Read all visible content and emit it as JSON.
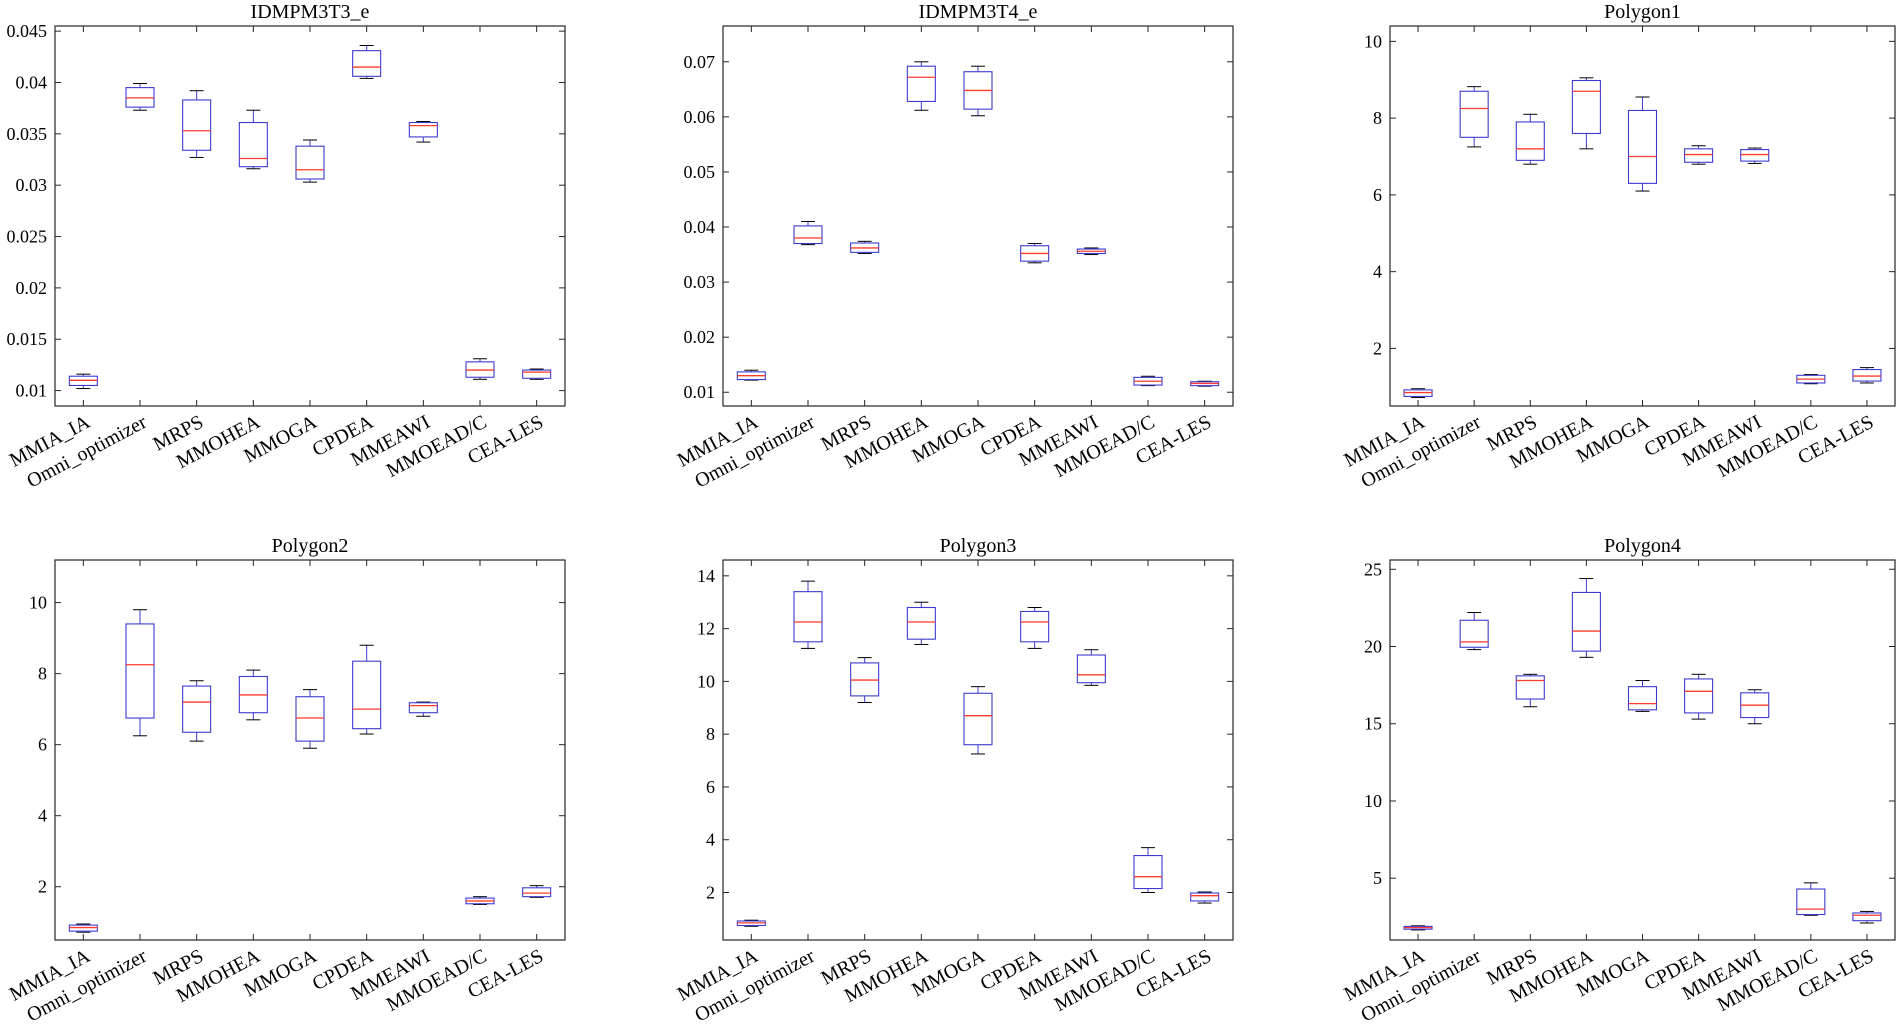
{
  "chart_data": [
    {
      "type": "box",
      "title": "IDMPM3T3_e",
      "categories": [
        "MMIA_IA",
        "Omni_optimizer",
        "MRPS",
        "MMOHEA",
        "MMOGA",
        "CPDEA",
        "MMEAWI",
        "MMOEAD/C",
        "CEA-LES"
      ],
      "ylim": [
        0.0085,
        0.0455
      ],
      "yticks": [
        0.01,
        0.015,
        0.02,
        0.025,
        0.03,
        0.035,
        0.04,
        0.045
      ],
      "ytick_labels": [
        "0.01",
        "0.015",
        "0.02",
        "0.025",
        "0.03",
        "0.035",
        "0.04",
        "0.045"
      ],
      "boxes": [
        {
          "min": 0.0102,
          "q1": 0.0105,
          "median": 0.011,
          "q3": 0.0114,
          "max": 0.0116
        },
        {
          "min": 0.0373,
          "q1": 0.0376,
          "median": 0.0385,
          "q3": 0.0395,
          "max": 0.0399
        },
        {
          "min": 0.0327,
          "q1": 0.0334,
          "median": 0.0353,
          "q3": 0.0383,
          "max": 0.0392
        },
        {
          "min": 0.0316,
          "q1": 0.0318,
          "median": 0.0326,
          "q3": 0.0361,
          "max": 0.0373
        },
        {
          "min": 0.0303,
          "q1": 0.0306,
          "median": 0.0315,
          "q3": 0.0338,
          "max": 0.0344
        },
        {
          "min": 0.0404,
          "q1": 0.0406,
          "median": 0.0415,
          "q3": 0.0431,
          "max": 0.0436
        },
        {
          "min": 0.0342,
          "q1": 0.0347,
          "median": 0.0358,
          "q3": 0.0361,
          "max": 0.0362
        },
        {
          "min": 0.0111,
          "q1": 0.0113,
          "median": 0.012,
          "q3": 0.0128,
          "max": 0.0131
        },
        {
          "min": 0.0111,
          "q1": 0.0112,
          "median": 0.0118,
          "q3": 0.012,
          "max": 0.0121
        }
      ]
    },
    {
      "type": "box",
      "title": "IDMPM3T4_e",
      "categories": [
        "MMIA_IA",
        "Omni_optimizer",
        "MRPS",
        "MMOHEA",
        "MMOGA",
        "CPDEA",
        "MMEAWI",
        "MMOEAD/C",
        "CEA-LES"
      ],
      "ylim": [
        0.0075,
        0.0765
      ],
      "yticks": [
        0.01,
        0.02,
        0.03,
        0.04,
        0.05,
        0.06,
        0.07
      ],
      "ytick_labels": [
        "0.01",
        "0.02",
        "0.03",
        "0.04",
        "0.05",
        "0.06",
        "0.07"
      ],
      "boxes": [
        {
          "min": 0.0122,
          "q1": 0.0123,
          "median": 0.013,
          "q3": 0.0137,
          "max": 0.014
        },
        {
          "min": 0.0368,
          "q1": 0.037,
          "median": 0.038,
          "q3": 0.0402,
          "max": 0.041
        },
        {
          "min": 0.0352,
          "q1": 0.0354,
          "median": 0.0362,
          "q3": 0.0371,
          "max": 0.0374
        },
        {
          "min": 0.0612,
          "q1": 0.0628,
          "median": 0.0672,
          "q3": 0.0692,
          "max": 0.07
        },
        {
          "min": 0.0602,
          "q1": 0.0614,
          "median": 0.0648,
          "q3": 0.0682,
          "max": 0.0692
        },
        {
          "min": 0.0335,
          "q1": 0.0338,
          "median": 0.0352,
          "q3": 0.0366,
          "max": 0.037
        },
        {
          "min": 0.035,
          "q1": 0.0352,
          "median": 0.0356,
          "q3": 0.036,
          "max": 0.0362
        },
        {
          "min": 0.0112,
          "q1": 0.0113,
          "median": 0.012,
          "q3": 0.0127,
          "max": 0.0129
        },
        {
          "min": 0.0111,
          "q1": 0.0112,
          "median": 0.0116,
          "q3": 0.0119,
          "max": 0.012
        }
      ]
    },
    {
      "type": "box",
      "title": "Polygon1",
      "categories": [
        "MMIA_IA",
        "Omni_optimizer",
        "MRPS",
        "MMOHEA",
        "MMOGA",
        "CPDEA",
        "MMEAWI",
        "MMOEAD/C",
        "CEA-LES"
      ],
      "ylim": [
        0.5,
        10.4
      ],
      "yticks": [
        2,
        4,
        6,
        8,
        10
      ],
      "ytick_labels": [
        "2",
        "4",
        "6",
        "8",
        "10"
      ],
      "boxes": [
        {
          "min": 0.72,
          "q1": 0.75,
          "median": 0.85,
          "q3": 0.92,
          "max": 0.95
        },
        {
          "min": 7.25,
          "q1": 7.5,
          "median": 8.25,
          "q3": 8.7,
          "max": 8.82
        },
        {
          "min": 6.8,
          "q1": 6.9,
          "median": 7.2,
          "q3": 7.9,
          "max": 8.1
        },
        {
          "min": 7.2,
          "q1": 7.6,
          "median": 8.7,
          "q3": 8.98,
          "max": 9.05
        },
        {
          "min": 6.1,
          "q1": 6.3,
          "median": 7.0,
          "q3": 8.2,
          "max": 8.55
        },
        {
          "min": 6.8,
          "q1": 6.85,
          "median": 7.05,
          "q3": 7.2,
          "max": 7.28
        },
        {
          "min": 6.82,
          "q1": 6.88,
          "median": 7.05,
          "q3": 7.18,
          "max": 7.22
        },
        {
          "min": 1.08,
          "q1": 1.1,
          "median": 1.2,
          "q3": 1.3,
          "max": 1.32
        },
        {
          "min": 1.1,
          "q1": 1.15,
          "median": 1.28,
          "q3": 1.45,
          "max": 1.5
        }
      ]
    },
    {
      "type": "box",
      "title": "Polygon2",
      "categories": [
        "MMIA_IA",
        "Omni_optimizer",
        "MRPS",
        "MMOHEA",
        "MMOGA",
        "CPDEA",
        "MMEAWI",
        "MMOEAD/C",
        "CEA-LES"
      ],
      "ylim": [
        0.5,
        11.2
      ],
      "yticks": [
        2,
        4,
        6,
        8,
        10
      ],
      "ytick_labels": [
        "2",
        "4",
        "6",
        "8",
        "10"
      ],
      "boxes": [
        {
          "min": 0.72,
          "q1": 0.75,
          "median": 0.85,
          "q3": 0.92,
          "max": 0.95
        },
        {
          "min": 6.25,
          "q1": 6.75,
          "median": 8.25,
          "q3": 9.4,
          "max": 9.8
        },
        {
          "min": 6.1,
          "q1": 6.35,
          "median": 7.2,
          "q3": 7.65,
          "max": 7.8
        },
        {
          "min": 6.7,
          "q1": 6.9,
          "median": 7.4,
          "q3": 7.92,
          "max": 8.1
        },
        {
          "min": 5.9,
          "q1": 6.1,
          "median": 6.75,
          "q3": 7.35,
          "max": 7.55
        },
        {
          "min": 6.3,
          "q1": 6.45,
          "median": 7.0,
          "q3": 8.35,
          "max": 8.8
        },
        {
          "min": 6.8,
          "q1": 6.9,
          "median": 7.1,
          "q3": 7.18,
          "max": 7.2
        },
        {
          "min": 1.5,
          "q1": 1.52,
          "median": 1.6,
          "q3": 1.68,
          "max": 1.72
        },
        {
          "min": 1.7,
          "q1": 1.72,
          "median": 1.82,
          "q3": 1.97,
          "max": 2.03
        }
      ]
    },
    {
      "type": "box",
      "title": "Polygon3",
      "categories": [
        "MMIA_IA",
        "Omni_optimizer",
        "MRPS",
        "MMOHEA",
        "MMOGA",
        "CPDEA",
        "MMEAWI",
        "MMOEAD/C",
        "CEA-LES"
      ],
      "ylim": [
        0.2,
        14.6
      ],
      "yticks": [
        2,
        4,
        6,
        8,
        10,
        12,
        14
      ],
      "ytick_labels": [
        "2",
        "4",
        "6",
        "8",
        "10",
        "12",
        "14"
      ],
      "boxes": [
        {
          "min": 0.72,
          "q1": 0.75,
          "median": 0.85,
          "q3": 0.92,
          "max": 0.95
        },
        {
          "min": 11.25,
          "q1": 11.5,
          "median": 12.25,
          "q3": 13.4,
          "max": 13.8
        },
        {
          "min": 9.2,
          "q1": 9.45,
          "median": 10.05,
          "q3": 10.7,
          "max": 10.9
        },
        {
          "min": 11.4,
          "q1": 11.6,
          "median": 12.25,
          "q3": 12.8,
          "max": 13.0
        },
        {
          "min": 7.25,
          "q1": 7.6,
          "median": 8.7,
          "q3": 9.55,
          "max": 9.8
        },
        {
          "min": 11.25,
          "q1": 11.5,
          "median": 12.25,
          "q3": 12.65,
          "max": 12.8
        },
        {
          "min": 9.85,
          "q1": 9.95,
          "median": 10.25,
          "q3": 11.0,
          "max": 11.2
        },
        {
          "min": 2.0,
          "q1": 2.15,
          "median": 2.6,
          "q3": 3.4,
          "max": 3.7
        },
        {
          "min": 1.6,
          "q1": 1.68,
          "median": 1.88,
          "q3": 1.98,
          "max": 2.02
        }
      ]
    },
    {
      "type": "box",
      "title": "Polygon4",
      "categories": [
        "MMIA_IA",
        "Omni_optimizer",
        "MRPS",
        "MMOHEA",
        "MMOGA",
        "CPDEA",
        "MMEAWI",
        "MMOEAD/C",
        "CEA-LES"
      ],
      "ylim": [
        1.0,
        25.6
      ],
      "yticks": [
        5,
        10,
        15,
        20,
        25
      ],
      "ytick_labels": [
        "5",
        "10",
        "15",
        "20",
        "25"
      ],
      "boxes": [
        {
          "min": 1.65,
          "q1": 1.7,
          "median": 1.8,
          "q3": 1.88,
          "max": 1.92
        },
        {
          "min": 19.8,
          "q1": 19.95,
          "median": 20.3,
          "q3": 21.7,
          "max": 22.2
        },
        {
          "min": 16.1,
          "q1": 16.6,
          "median": 17.8,
          "q3": 18.1,
          "max": 18.2
        },
        {
          "min": 19.3,
          "q1": 19.7,
          "median": 21.0,
          "q3": 23.5,
          "max": 24.4
        },
        {
          "min": 15.8,
          "q1": 15.9,
          "median": 16.3,
          "q3": 17.4,
          "max": 17.8
        },
        {
          "min": 15.3,
          "q1": 15.7,
          "median": 17.1,
          "q3": 17.9,
          "max": 18.2
        },
        {
          "min": 15.0,
          "q1": 15.4,
          "median": 16.2,
          "q3": 17.0,
          "max": 17.2
        },
        {
          "min": 2.6,
          "q1": 2.65,
          "median": 3.0,
          "q3": 4.3,
          "max": 4.7
        },
        {
          "min": 2.1,
          "q1": 2.25,
          "median": 2.6,
          "q3": 2.75,
          "max": 2.85
        }
      ]
    }
  ]
}
